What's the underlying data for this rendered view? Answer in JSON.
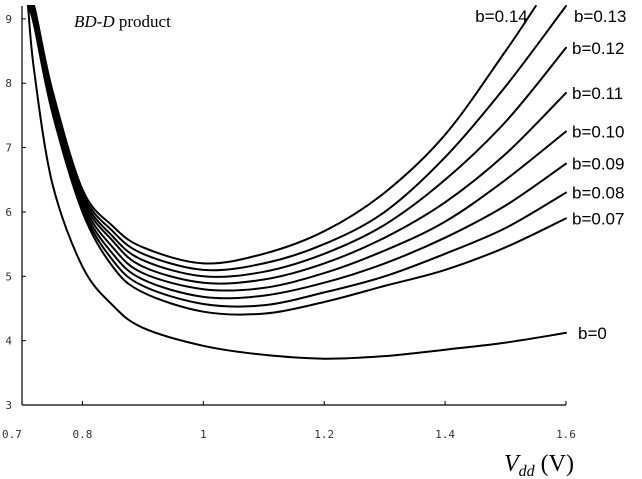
{
  "chart_data": {
    "type": "line",
    "title_main": "BD-D",
    "title_rest": " product",
    "xlabel_main": "V",
    "xlabel_sub": "dd",
    "xlabel_unit": " (V)",
    "ylabel": "",
    "xlim": [
      0.7,
      1.6
    ],
    "ylim": [
      3,
      9.2
    ],
    "x_ticks": [
      {
        "value": 0.7,
        "label": "0.7"
      },
      {
        "value": 0.8,
        "label": "0.8"
      },
      {
        "value": 1.0,
        "label": "1"
      },
      {
        "value": 1.2,
        "label": "1.2"
      },
      {
        "value": 1.4,
        "label": "1.4"
      },
      {
        "value": 1.6,
        "label": "1.6"
      }
    ],
    "y_ticks": [
      {
        "value": 3,
        "label": "3"
      },
      {
        "value": 4,
        "label": "4"
      },
      {
        "value": 5,
        "label": "5"
      },
      {
        "value": 6,
        "label": "6"
      },
      {
        "value": 7,
        "label": "7"
      },
      {
        "value": 8,
        "label": "8"
      },
      {
        "value": 9,
        "label": "9"
      }
    ],
    "series": [
      {
        "name": "b=0",
        "x": [
          0.71,
          0.72,
          0.75,
          0.8,
          0.85,
          0.9,
          1.0,
          1.1,
          1.2,
          1.3,
          1.4,
          1.5,
          1.6
        ],
        "values": [
          9.2,
          8.2,
          6.45,
          5.15,
          4.55,
          4.2,
          3.92,
          3.78,
          3.72,
          3.76,
          3.86,
          3.97,
          4.12
        ]
      },
      {
        "name": "b=0.07",
        "x": [
          0.71,
          0.72,
          0.75,
          0.8,
          0.85,
          0.9,
          1.0,
          1.1,
          1.2,
          1.3,
          1.4,
          1.5,
          1.6
        ],
        "values": [
          9.2,
          8.9,
          7.55,
          6.0,
          5.15,
          4.75,
          4.45,
          4.42,
          4.6,
          4.85,
          5.1,
          5.45,
          5.9
        ]
      },
      {
        "name": "b=0.08",
        "x": [
          0.71,
          0.72,
          0.75,
          0.8,
          0.85,
          0.9,
          1.0,
          1.1,
          1.2,
          1.3,
          1.4,
          1.5,
          1.6
        ],
        "values": [
          9.2,
          8.95,
          7.6,
          6.05,
          5.25,
          4.85,
          4.57,
          4.55,
          4.75,
          5.0,
          5.35,
          5.75,
          6.3
        ]
      },
      {
        "name": "b=0.09",
        "x": [
          0.71,
          0.72,
          0.75,
          0.8,
          0.85,
          0.9,
          1.0,
          1.1,
          1.2,
          1.3,
          1.4,
          1.5,
          1.6
        ],
        "values": [
          9.2,
          9.0,
          7.65,
          6.1,
          5.35,
          4.95,
          4.68,
          4.7,
          4.9,
          5.2,
          5.6,
          6.1,
          6.75
        ]
      },
      {
        "name": "b=0.10",
        "x": [
          0.71,
          0.72,
          0.75,
          0.8,
          0.85,
          0.9,
          1.0,
          1.1,
          1.2,
          1.3,
          1.4,
          1.5,
          1.6
        ],
        "values": [
          9.2,
          9.05,
          7.7,
          6.15,
          5.45,
          5.05,
          4.8,
          4.82,
          5.05,
          5.4,
          5.85,
          6.5,
          7.25
        ]
      },
      {
        "name": "b=0.11",
        "x": [
          0.71,
          0.72,
          0.75,
          0.8,
          0.85,
          0.9,
          1.0,
          1.1,
          1.2,
          1.3,
          1.4,
          1.5,
          1.6
        ],
        "values": [
          9.2,
          9.1,
          7.75,
          6.2,
          5.55,
          5.15,
          4.9,
          4.95,
          5.2,
          5.6,
          6.15,
          6.9,
          7.85
        ]
      },
      {
        "name": "b=0.12",
        "x": [
          0.71,
          0.72,
          0.75,
          0.8,
          0.85,
          0.9,
          1.0,
          1.1,
          1.2,
          1.3,
          1.4,
          1.5,
          1.6
        ],
        "values": [
          9.2,
          9.15,
          7.8,
          6.25,
          5.62,
          5.25,
          5.0,
          5.07,
          5.35,
          5.8,
          6.5,
          7.4,
          8.55
        ]
      },
      {
        "name": "b=0.13",
        "x": [
          0.71,
          0.72,
          0.75,
          0.8,
          0.85,
          0.9,
          1.0,
          1.1,
          1.2,
          1.3,
          1.4,
          1.5,
          1.6
        ],
        "values": [
          9.2,
          9.2,
          7.85,
          6.3,
          5.7,
          5.35,
          5.1,
          5.2,
          5.5,
          6.0,
          6.85,
          7.95,
          9.2
        ]
      },
      {
        "name": "b=0.14",
        "x": [
          0.71,
          0.72,
          0.75,
          0.8,
          0.85,
          0.9,
          1.0,
          1.1,
          1.2,
          1.3,
          1.4,
          1.5,
          1.55
        ],
        "values": [
          9.2,
          9.2,
          7.9,
          6.35,
          5.78,
          5.45,
          5.2,
          5.35,
          5.7,
          6.3,
          7.2,
          8.5,
          9.2
        ]
      }
    ],
    "grid": false,
    "legend": "curve-end labels at right"
  }
}
